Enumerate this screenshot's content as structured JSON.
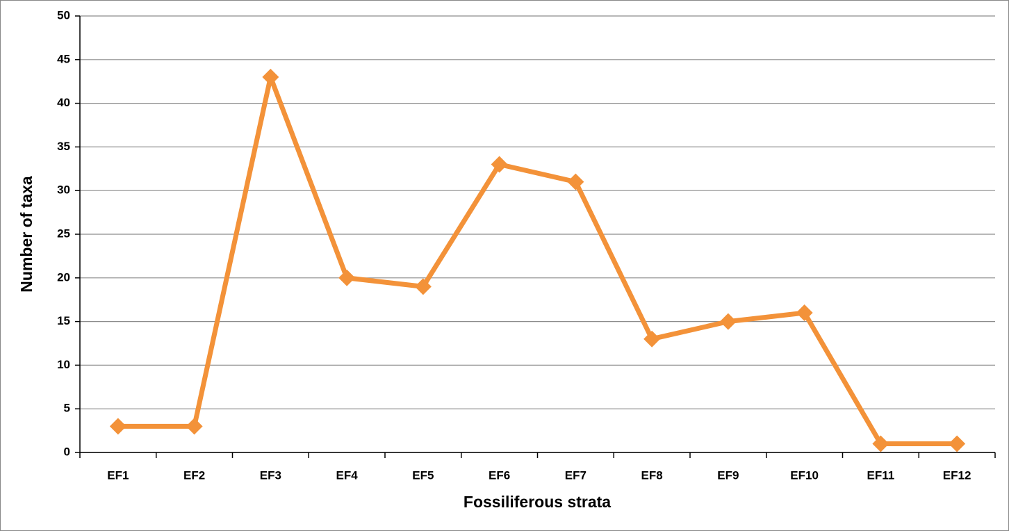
{
  "chart_data": {
    "type": "line",
    "x_label": "Fossiliferous strata",
    "y_label": "Number of taxa",
    "categories": [
      "EF1",
      "EF2",
      "EF3",
      "EF4",
      "EF5",
      "EF6",
      "EF7",
      "EF8",
      "EF9",
      "EF10",
      "EF11",
      "EF12"
    ],
    "values": [
      3,
      3,
      43,
      20,
      19,
      33,
      31,
      13,
      15,
      16,
      1,
      1
    ],
    "color": "#f39239",
    "ylim": [
      0,
      50
    ],
    "yticks": [
      0,
      5,
      10,
      15,
      20,
      25,
      30,
      35,
      40,
      45,
      50
    ],
    "grid": true
  }
}
